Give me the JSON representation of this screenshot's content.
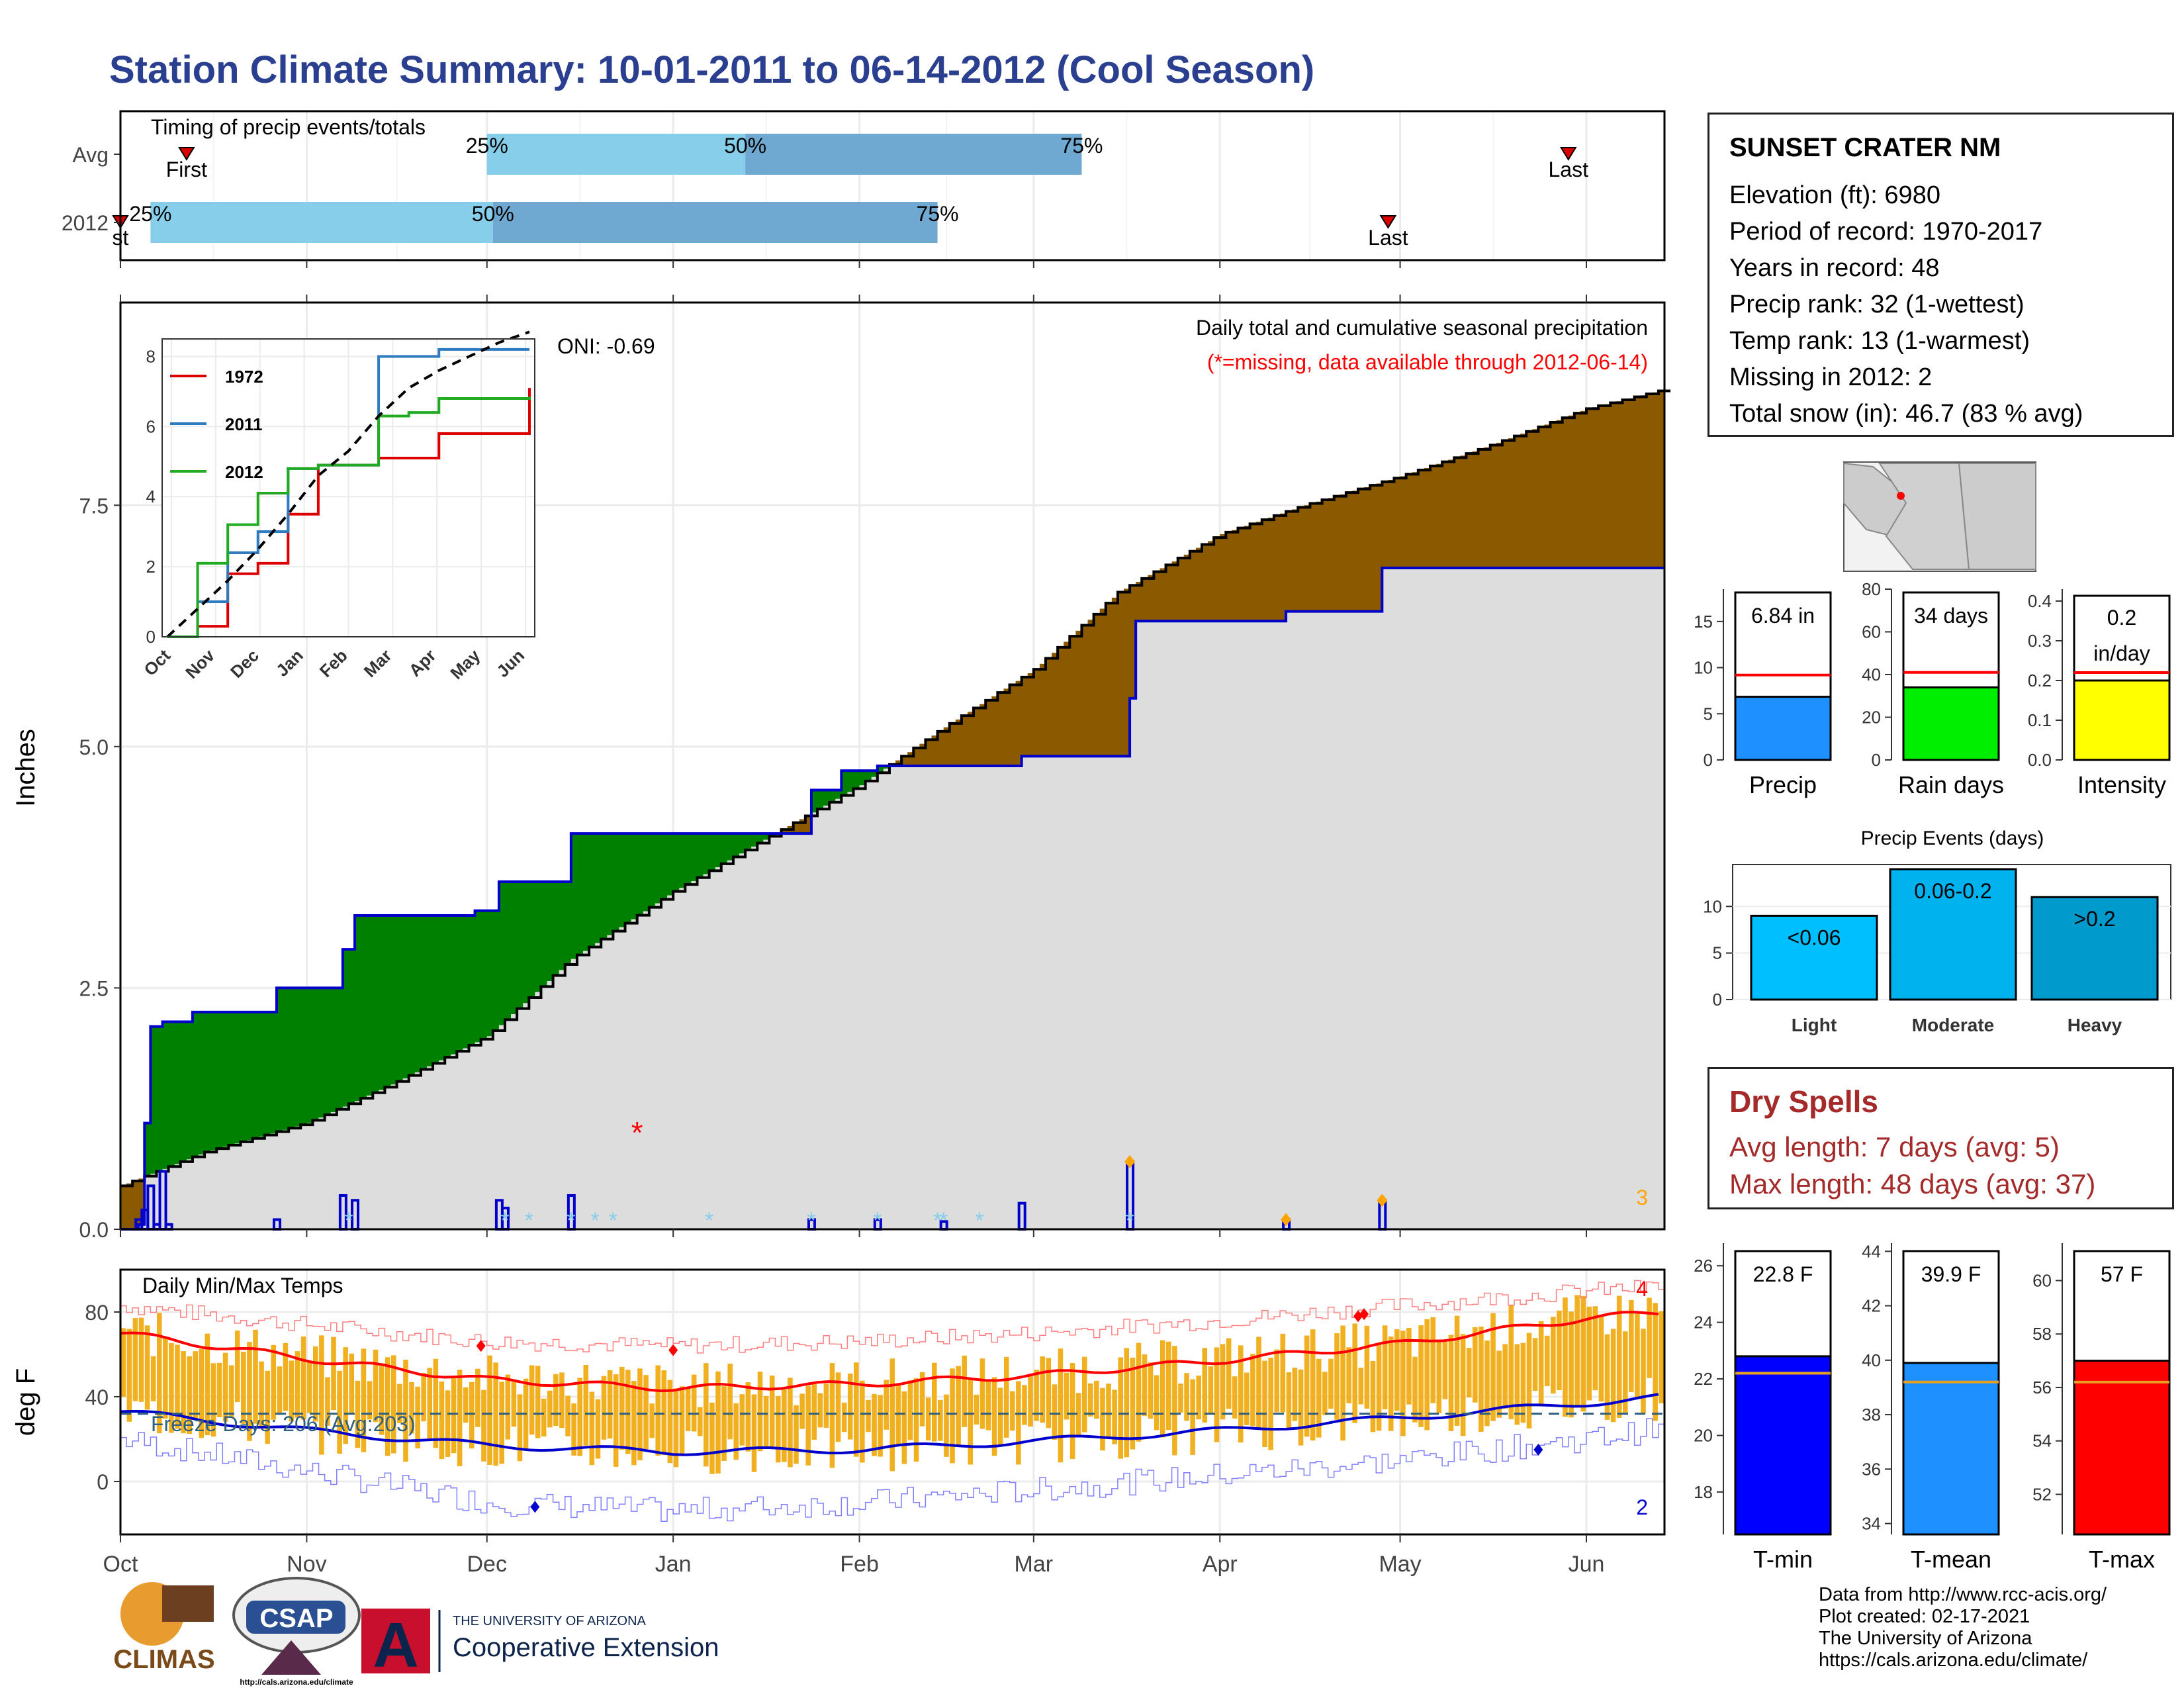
{
  "title": "Station Climate Summary: 10-01-2011 to 06-14-2012 (Cool Season)",
  "station": {
    "name": "SUNSET CRATER NM",
    "lines": [
      "Elevation (ft): 6980",
      "Period of record: 1970-2017",
      "Years in record: 48",
      "Precip rank: 32 (1-wettest)",
      "Temp rank: 13 (1-warmest)",
      "Missing in 2012: 2",
      "Total snow (in): 46.7 (83 % avg)"
    ]
  },
  "dry_spells": {
    "title": "Dry Spells",
    "lines": [
      "Avg length: 7 days (avg: 5)",
      "Max length: 48 days (avg: 37)"
    ]
  },
  "credits": [
    "Data from http://www.rcc-acis.org/",
    "Plot created: 02-17-2021",
    "The University of Arizona",
    "https://cals.arizona.edu/climate/"
  ],
  "logos": {
    "climas": "CLIMAS",
    "csap": "CSAP",
    "csap_url": "http://cals.arizona.edu/climate",
    "ua_small": "THE UNIVERSITY OF ARIZONA",
    "ua_big": "Cooperative Extension",
    "ua_mark": "A"
  },
  "colors": {
    "green": "#008000",
    "brown": "#8b5a00",
    "gray_fill": "#dddddd",
    "blue_line": "#0000cc",
    "light_blue": "#87ceeb",
    "mid_blue": "#6fa8d0",
    "orange_bar": "#f0b020",
    "red": "#ff0000",
    "title_blue": "#2a3f8f",
    "dry_red": "#a52a2a"
  },
  "chart_data": [
    {
      "type": "bar",
      "role": "timing",
      "title": "Timing of precip events/totals",
      "categories": [
        "Avg",
        "2012"
      ],
      "x_axis": "dates 2011-10-01 to 2012-06-14",
      "rows": [
        {
          "label": "Avg",
          "p25": "2011-12-01",
          "p50": "2012-01-13",
          "p75": "2012-03-09",
          "first": "2011-10-12",
          "last": "2012-05-29",
          "p25_label": "25%",
          "p50_label": "50%",
          "p75_label": "75%",
          "first_label": "First",
          "last_label": "Last"
        },
        {
          "label": "2012",
          "p25": "2011-10-06",
          "p50": "2011-12-02",
          "p75": "2012-02-14",
          "first": "2011-10-01",
          "last": "2012-04-29",
          "p25_label": "25%",
          "p50_label": "50%",
          "p75_label": "75%",
          "first_label": "st",
          "last_label": "Last"
        }
      ]
    },
    {
      "type": "area",
      "role": "cumulative_precip",
      "ylabel": "Inches",
      "ylim": [
        0,
        9.6
      ],
      "yticks": [
        0.0,
        2.5,
        5.0,
        7.5
      ],
      "ytick_labels": [
        "0.0",
        "2.5",
        "5.0",
        "7.5"
      ],
      "annotation_title": "Daily total and cumulative seasonal precipitation",
      "annotation_missing": "(*=missing, data available through 2012-06-14)",
      "oni": "ONI: -0.69",
      "corner_label": "3",
      "series": [
        {
          "name": "average cumulative",
          "dates": [
            "2011-10-01",
            "2011-10-15",
            "2011-11-01",
            "2011-11-15",
            "2011-12-01",
            "2011-12-15",
            "2012-01-01",
            "2012-01-15",
            "2012-02-01",
            "2012-02-15",
            "2012-03-01",
            "2012-03-15",
            "2012-04-01",
            "2012-04-15",
            "2012-05-01",
            "2012-05-15",
            "2012-06-01",
            "2012-06-14"
          ],
          "values": [
            0.45,
            0.8,
            1.1,
            1.5,
            2.0,
            2.8,
            3.5,
            4.0,
            4.6,
            5.2,
            5.8,
            6.6,
            7.2,
            7.5,
            7.8,
            8.1,
            8.5,
            8.7
          ]
        },
        {
          "name": "2012 cumulative",
          "dates": [
            "2011-10-01",
            "2011-10-04",
            "2011-10-05",
            "2011-10-06",
            "2011-10-08",
            "2011-10-13",
            "2011-10-27",
            "2011-11-07",
            "2011-11-09",
            "2011-11-29",
            "2011-12-03",
            "2011-12-15",
            "2012-01-24",
            "2012-01-29",
            "2012-02-04",
            "2012-02-15",
            "2012-02-28",
            "2012-03-17",
            "2012-03-18",
            "2012-04-12",
            "2012-04-28",
            "2012-06-14"
          ],
          "values": [
            0.0,
            0.05,
            1.1,
            2.1,
            2.15,
            2.25,
            2.5,
            2.9,
            3.25,
            3.3,
            3.6,
            4.1,
            4.55,
            4.75,
            4.8,
            4.8,
            4.9,
            5.5,
            6.3,
            6.4,
            6.85,
            6.85
          ]
        }
      ],
      "daily_bars": {
        "dates": [
          "2011-10-04",
          "2011-10-05",
          "2011-10-06",
          "2011-10-07",
          "2011-10-08",
          "2011-10-09",
          "2011-10-27",
          "2011-11-07",
          "2011-11-09",
          "2011-12-03",
          "2011-12-04",
          "2011-12-15",
          "2012-01-24",
          "2012-02-04",
          "2012-02-15",
          "2012-02-28",
          "2012-03-17",
          "2012-04-12",
          "2012-04-28"
        ],
        "values": [
          0.1,
          0.2,
          0.45,
          0.05,
          0.6,
          0.05,
          0.1,
          0.35,
          0.3,
          0.3,
          0.22,
          0.35,
          0.1,
          0.1,
          0.08,
          0.27,
          0.7,
          0.1,
          0.3
        ]
      },
      "missing_marker": {
        "date": "2011-12-26",
        "value": 1.0,
        "label": "*"
      },
      "snow_markers": [
        "2011-11-08",
        "2011-12-04",
        "2011-12-08",
        "2011-12-15",
        "2011-12-19",
        "2011-12-22",
        "2012-01-07",
        "2012-01-24",
        "2012-02-04",
        "2012-02-14",
        "2012-02-15",
        "2012-02-21",
        "2012-03-17"
      ]
    },
    {
      "type": "line",
      "role": "inset_comparison",
      "x_ticks": [
        "Oct",
        "Nov",
        "Dec",
        "Jan",
        "Feb",
        "Mar",
        "Apr",
        "May",
        "Jun"
      ],
      "ylim": [
        0,
        8.5
      ],
      "yticks": [
        0,
        2,
        4,
        6,
        8
      ],
      "series": [
        {
          "name": "1972",
          "color": "#dd0000",
          "values": [
            0,
            0.3,
            1.8,
            2.1,
            3.5,
            4.9,
            4.9,
            5.1,
            5.1,
            5.8,
            5.8,
            5.8,
            7.1
          ]
        },
        {
          "name": "2011",
          "color": "#2e7bbf",
          "values": [
            0,
            1.0,
            2.4,
            3.0,
            4.8,
            4.9,
            4.9,
            8.0,
            8.0,
            8.2,
            8.2,
            8.2,
            8.2
          ]
        },
        {
          "name": "2012",
          "color": "#22aa22",
          "values": [
            0,
            2.1,
            3.2,
            4.1,
            4.8,
            4.9,
            4.9,
            6.3,
            6.4,
            6.8,
            6.8,
            6.8,
            6.85
          ]
        },
        {
          "name": "",
          "color": "#000000",
          "dashed": true,
          "values": [
            0,
            0.8,
            1.6,
            2.5,
            3.5,
            4.6,
            5.3,
            6.3,
            7.1,
            7.6,
            8.0,
            8.4,
            8.7
          ]
        }
      ]
    },
    {
      "type": "bar",
      "role": "daily_temps",
      "title": "Daily Min/Max Temps",
      "ylabel": "deg F",
      "ylim": [
        -25,
        100
      ],
      "yticks": [
        0,
        40,
        80
      ],
      "x_ticks": [
        "Oct",
        "Nov",
        "Dec",
        "Jan",
        "Feb",
        "Mar",
        "Apr",
        "May",
        "Jun"
      ],
      "freeze_label": "Freeze Days: 206 (Avg:203)",
      "freeze_line": 32,
      "corner_high": "4",
      "corner_low": "2",
      "avg_max": {
        "dates": [
          "2011-10-01",
          "2011-11-01",
          "2011-12-01",
          "2012-01-01",
          "2012-02-01",
          "2012-03-01",
          "2012-04-01",
          "2012-05-01",
          "2012-06-01",
          "2012-06-14"
        ],
        "values": [
          70,
          58,
          48,
          44,
          46,
          50,
          57,
          65,
          77,
          80
        ]
      },
      "avg_min": {
        "dates": [
          "2011-10-01",
          "2011-11-01",
          "2011-12-01",
          "2012-01-01",
          "2012-02-01",
          "2012-03-01",
          "2012-04-01",
          "2012-05-01",
          "2012-06-01",
          "2012-06-14"
        ],
        "values": [
          33,
          24,
          17,
          14,
          15,
          19,
          24,
          30,
          37,
          40
        ]
      },
      "record_max": {
        "dates": [
          "2011-10-01",
          "2011-11-01",
          "2011-12-01",
          "2012-01-01",
          "2012-02-01",
          "2012-03-01",
          "2012-04-01",
          "2012-05-01",
          "2012-06-01",
          "2012-06-14"
        ],
        "values": [
          83,
          74,
          66,
          64,
          66,
          70,
          76,
          83,
          90,
          92
        ]
      },
      "record_min": {
        "dates": [
          "2011-10-01",
          "2011-11-01",
          "2011-12-01",
          "2012-01-01",
          "2012-02-01",
          "2012-03-01",
          "2012-04-01",
          "2012-05-01",
          "2012-06-01",
          "2012-06-14"
        ],
        "values": [
          20,
          5,
          -10,
          -14,
          -10,
          -4,
          3,
          10,
          20,
          25
        ]
      },
      "record_high_markers": [
        {
          "date": "2011-11-30",
          "value": 64
        },
        {
          "date": "2012-01-01",
          "value": 62
        },
        {
          "date": "2012-04-24",
          "value": 78
        },
        {
          "date": "2012-04-25",
          "value": 79
        }
      ],
      "record_low_markers": [
        {
          "date": "2011-12-09",
          "value": -12
        },
        {
          "date": "2012-05-24",
          "value": 15
        }
      ]
    },
    {
      "type": "bar",
      "role": "precip_summary",
      "categories": [
        "Precip",
        "Rain days",
        "Intensity"
      ],
      "values": [
        6.84,
        34,
        0.2
      ],
      "averages": [
        9.2,
        41,
        0.22
      ],
      "value_labels": [
        "6.84 in",
        "34 days",
        "0.2 in/day"
      ],
      "ylims": [
        [
          0,
          18.5
        ],
        [
          0,
          80
        ],
        [
          0,
          0.43
        ]
      ],
      "yticks": [
        [
          0,
          5,
          10,
          15
        ],
        [
          0,
          20,
          40,
          60,
          80
        ],
        [
          0.0,
          0.1,
          0.2,
          0.3,
          0.4
        ]
      ],
      "colors": [
        "#1e90ff",
        "#00ee00",
        "#ffff00"
      ]
    },
    {
      "type": "bar",
      "role": "precip_events",
      "title": "Precip Events (days)",
      "categories": [
        "Light",
        "Moderate",
        "Heavy"
      ],
      "bar_labels": [
        "<0.06",
        "0.06-0.2",
        ">0.2"
      ],
      "values": [
        9,
        14,
        11
      ],
      "ylim": [
        0,
        14.5
      ],
      "yticks": [
        0,
        5,
        10
      ],
      "colors": [
        "#00bfff",
        "#00b2ee",
        "#009acd"
      ]
    },
    {
      "type": "bar",
      "role": "temp_summary",
      "categories": [
        "T-min",
        "T-mean",
        "T-max"
      ],
      "values": [
        22.8,
        39.9,
        57
      ],
      "averages": [
        22.2,
        39.2,
        56.2
      ],
      "value_labels": [
        "22.8 F",
        "39.9 F",
        "57 F"
      ],
      "ylims": [
        [
          16.5,
          26.8
        ],
        [
          33.6,
          44.3
        ],
        [
          50.5,
          61.4
        ]
      ],
      "yticks": [
        [
          18,
          20,
          22,
          24,
          26
        ],
        [
          34,
          36,
          38,
          40,
          42,
          44
        ],
        [
          52,
          54,
          56,
          58,
          60
        ]
      ],
      "colors": [
        "#0000ff",
        "#1e90ff",
        "#ff0000"
      ]
    }
  ]
}
